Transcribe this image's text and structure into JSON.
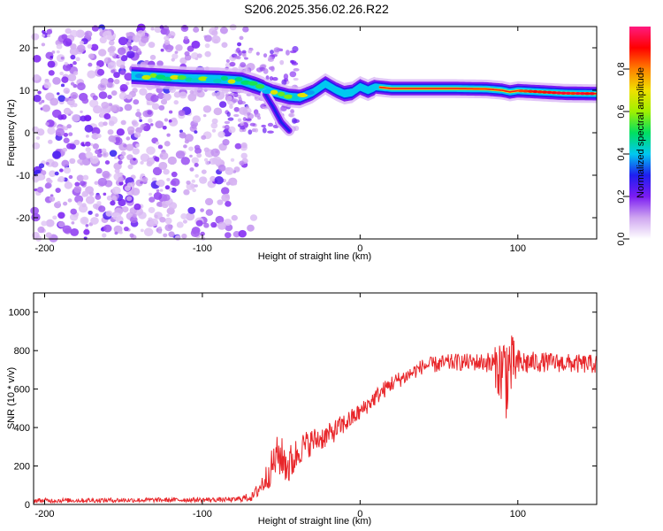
{
  "title": "S206.2025.356.02.26.R22",
  "colors": {
    "snr_line": "#e8262a",
    "noise": "#8a2be2",
    "axis": "#000000",
    "background": "#ffffff"
  },
  "chart_data": [
    {
      "name": "spectrogram",
      "type": "heatmap",
      "xlabel": "Height of straight line (km)",
      "ylabel": "Frequency (Hz)",
      "xlim": [
        -207,
        150
      ],
      "ylim": [
        -25,
        25
      ],
      "x_ticks": [
        -200,
        -100,
        0,
        100
      ],
      "y_ticks": [
        -20,
        -10,
        0,
        10,
        20
      ],
      "colorbar": {
        "label": "Normalized spectral amplitude",
        "range": [
          0.0,
          1.0
        ],
        "ticks": [
          "0.0",
          "0.2",
          "0.4",
          "0.6",
          "0.8"
        ],
        "tick_values": [
          0.0,
          0.2,
          0.4,
          0.6,
          0.8
        ],
        "colormap": [
          "#ffffff",
          "#cfa6f0",
          "#7b1bf2",
          "#1e1ef0",
          "#00c8f0",
          "#00e060",
          "#a0f000",
          "#f0e000",
          "#ff8000",
          "#ff0000",
          "#ff1a80"
        ]
      },
      "noise_region_km": [
        -207,
        -75
      ],
      "signal_ridge": {
        "x_km": [
          -145,
          -130,
          -110,
          -90,
          -75,
          -65,
          -55,
          -45,
          -38,
          -30,
          -22,
          -15,
          -10,
          -5,
          0,
          5,
          10,
          20,
          40,
          60,
          80,
          90,
          95,
          100,
          110,
          120,
          130,
          150
        ],
        "freq_hz": [
          13.5,
          13.2,
          12.8,
          12.6,
          12.2,
          11.0,
          9.5,
          8.5,
          8.3,
          9.5,
          11.5,
          10.0,
          9.2,
          9.5,
          10.8,
          10.0,
          10.8,
          10.4,
          10.4,
          10.4,
          10.3,
          10.0,
          9.6,
          9.9,
          9.7,
          9.5,
          9.3,
          9.2
        ]
      },
      "dip_branch": {
        "x_km": [
          -60,
          -55,
          -50,
          -45
        ],
        "freq_hz": [
          9.0,
          6.0,
          2.5,
          0.5
        ]
      }
    },
    {
      "name": "snr",
      "type": "line",
      "xlabel": "Height of straight line (km)",
      "ylabel": "SNR (10 * v/v)",
      "xlim": [
        -207,
        150
      ],
      "ylim": [
        0,
        1100
      ],
      "x_ticks": [
        -200,
        -100,
        0,
        100
      ],
      "y_ticks": [
        0,
        200,
        400,
        600,
        800,
        1000
      ],
      "series": [
        {
          "name": "SNR",
          "envelope_x_km": [
            -207,
            -80,
            -68,
            -60,
            -52,
            -45,
            -38,
            -30,
            -20,
            -10,
            0,
            10,
            20,
            30,
            40,
            50,
            60,
            70,
            80,
            85,
            90,
            93,
            96,
            100,
            110,
            120,
            130,
            140,
            150
          ],
          "mean": [
            20,
            25,
            40,
            130,
            260,
            200,
            290,
            330,
            360,
            420,
            480,
            560,
            630,
            670,
            720,
            730,
            740,
            740,
            740,
            720,
            700,
            690,
            720,
            730,
            740,
            740,
            735,
            730,
            730
          ],
          "spread": [
            12,
            12,
            25,
            70,
            110,
            110,
            80,
            70,
            60,
            55,
            45,
            45,
            45,
            40,
            40,
            45,
            45,
            45,
            50,
            90,
            200,
            260,
            170,
            80,
            55,
            50,
            50,
            50,
            50
          ]
        }
      ]
    }
  ]
}
